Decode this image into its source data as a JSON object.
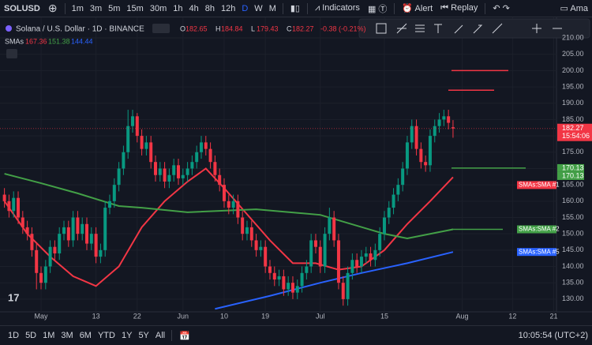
{
  "toolbar": {
    "symbol": "SOLUSD",
    "intervals": [
      "1m",
      "3m",
      "5m",
      "15m",
      "30m",
      "1h",
      "4h",
      "8h",
      "12h",
      "D",
      "W",
      "M"
    ],
    "active": "D",
    "indicators": "Indicators",
    "alert": "Alert",
    "replay": "Replay",
    "account": "Ama"
  },
  "chart_data": {
    "type": "candlestick",
    "title": "Solana / U.S. Dollar · 1D · BINANCE",
    "ohlc_header": [
      {
        "label": "O",
        "value": 182.65
      },
      {
        "label": "H",
        "value": 184.84
      },
      {
        "label": "L",
        "value": 179.43
      },
      {
        "label": "C",
        "value": 182.27
      }
    ],
    "change": "-0.38 (-0.21%)",
    "up_color": "#089981",
    "down_color": "#f23645",
    "x": [
      -8,
      -7,
      -6,
      -5,
      -4,
      -3,
      -2,
      -1,
      0,
      1,
      2,
      3,
      4,
      5,
      6,
      7,
      8,
      9,
      10,
      11,
      12,
      13,
      14,
      15,
      16,
      17,
      18,
      19,
      20,
      21,
      22,
      23,
      24,
      25,
      26,
      27,
      28,
      29,
      30,
      31,
      32,
      33,
      34,
      35,
      36,
      37,
      38,
      39,
      40,
      41,
      42,
      43,
      44,
      45,
      46,
      47,
      48,
      49,
      50,
      51,
      52,
      53,
      54,
      55,
      56,
      57,
      58,
      59,
      60,
      61,
      62,
      63,
      64,
      65,
      66,
      67,
      68,
      69,
      70,
      71,
      72,
      73,
      74,
      75,
      76,
      77,
      78,
      79,
      80,
      81,
      82,
      83,
      84,
      85,
      86,
      87,
      88,
      89,
      90
    ],
    "open": [
      162,
      160,
      157,
      161,
      155,
      152,
      150,
      145,
      138,
      135,
      140,
      146,
      144,
      150,
      152,
      148,
      155,
      150,
      153,
      147,
      150,
      143,
      145,
      158,
      160,
      165,
      170,
      175,
      183,
      186,
      180,
      176,
      178,
      172,
      168,
      170,
      166,
      168,
      171,
      167,
      168,
      170,
      172,
      175,
      178,
      176,
      172,
      168,
      165,
      160,
      158,
      160,
      155,
      150,
      152,
      148,
      145,
      146,
      140,
      138,
      136,
      137,
      133,
      135,
      132,
      134,
      138,
      140,
      148,
      146,
      140,
      150,
      155,
      148,
      135,
      130,
      138,
      142,
      140,
      143,
      144,
      142,
      145,
      150,
      155,
      158,
      162,
      165,
      170,
      178,
      183,
      176,
      172,
      171,
      180,
      183,
      185,
      186,
      182.65
    ],
    "high": [
      164,
      162,
      163,
      163,
      157,
      154,
      152,
      147,
      140,
      142,
      148,
      148,
      152,
      154,
      154,
      157,
      157,
      155,
      155,
      152,
      152,
      147,
      160,
      162,
      167,
      172,
      177,
      188,
      188,
      187,
      182,
      180,
      180,
      174,
      172,
      172,
      170,
      173,
      173,
      170,
      172,
      174,
      177,
      180,
      180,
      178,
      174,
      170,
      167,
      162,
      162,
      162,
      157,
      154,
      154,
      150,
      148,
      148,
      142,
      140,
      139,
      139,
      137,
      137,
      136,
      140,
      142,
      150,
      150,
      148,
      152,
      158,
      157,
      150,
      137,
      140,
      144,
      144,
      145,
      146,
      146,
      147,
      152,
      157,
      160,
      164,
      167,
      172,
      180,
      185,
      185,
      178,
      174,
      182,
      185,
      187,
      188,
      188,
      184.84
    ],
    "low": [
      158,
      155,
      155,
      153,
      150,
      148,
      143,
      133,
      133,
      133,
      138,
      142,
      142,
      148,
      146,
      146,
      148,
      148,
      145,
      145,
      141,
      141,
      143,
      156,
      158,
      163,
      168,
      173,
      181,
      178,
      174,
      174,
      170,
      166,
      166,
      164,
      164,
      166,
      165,
      165,
      166,
      168,
      170,
      173,
      174,
      170,
      166,
      163,
      158,
      156,
      156,
      153,
      148,
      148,
      146,
      143,
      143,
      138,
      136,
      134,
      134,
      131,
      131,
      130,
      130,
      132,
      136,
      138,
      144,
      138,
      138,
      148,
      146,
      133,
      128,
      128,
      136,
      138,
      138,
      141,
      140,
      140,
      143,
      148,
      153,
      156,
      160,
      163,
      168,
      176,
      174,
      170,
      169,
      169,
      178,
      181,
      183,
      182,
      179.43
    ],
    "close": [
      160,
      157,
      161,
      155,
      152,
      150,
      145,
      138,
      135,
      140,
      146,
      144,
      150,
      152,
      148,
      155,
      150,
      153,
      147,
      150,
      143,
      145,
      158,
      160,
      165,
      170,
      175,
      183,
      186,
      180,
      176,
      178,
      172,
      168,
      170,
      166,
      168,
      171,
      167,
      168,
      170,
      172,
      175,
      178,
      176,
      172,
      168,
      165,
      160,
      158,
      160,
      155,
      150,
      152,
      148,
      145,
      146,
      140,
      138,
      136,
      137,
      133,
      135,
      132,
      134,
      138,
      140,
      148,
      146,
      140,
      150,
      155,
      148,
      135,
      130,
      138,
      142,
      140,
      143,
      144,
      142,
      145,
      150,
      155,
      158,
      162,
      165,
      170,
      178,
      183,
      176,
      172,
      171,
      180,
      183,
      185,
      186,
      184,
      182.27
    ],
    "indicator_name": "SMAs",
    "series": [
      {
        "name": "SMAs:SMA #1",
        "color": "#f23645",
        "x": [
          -8,
          -3,
          2,
          7,
          12,
          17,
          22,
          27,
          32,
          36,
          40,
          45,
          50,
          55,
          60,
          65,
          70,
          75,
          80,
          85,
          90
        ],
        "values": [
          160,
          150,
          143,
          137,
          134,
          140,
          152,
          160,
          166,
          170,
          164,
          156,
          148,
          141,
          141,
          139,
          140,
          145,
          153,
          160,
          167.36
        ]
      },
      {
        "name": "SMAs:SMA #2",
        "color": "#43a047",
        "x": [
          -8,
          0,
          8,
          17,
          22,
          32,
          47,
          61,
          75,
          80,
          90
        ],
        "values": [
          168.4,
          165.5,
          162.4,
          158.5,
          158,
          156.6,
          157.5,
          155.8,
          150,
          148.6,
          151.38
        ]
      },
      {
        "name": "SMAs:SMA #5",
        "color": "#2962ff",
        "x": [
          38,
          50,
          61,
          70,
          80,
          90
        ],
        "values": [
          127,
          131,
          135,
          138,
          141,
          144.44
        ]
      }
    ],
    "last_time": "15:54:06",
    "extra_tags": [
      170.13,
      170.13
    ],
    "tag_color": "#43a047",
    "drawings": [
      {
        "y": 200,
        "color": "#f23645"
      },
      {
        "y": 194,
        "color": "#f23645"
      },
      {
        "y": 170.13,
        "color": "#43a047"
      },
      {
        "y": 151.38,
        "color": "#43a047"
      }
    ],
    "ylim": [
      126.1,
      216.3
    ],
    "yticks": [
      {
        "value": 130,
        "label": "130.00"
      },
      {
        "value": 135,
        "label": "135.00"
      },
      {
        "value": 140,
        "label": "140.00"
      },
      {
        "value": 145,
        "label": "145.00"
      },
      {
        "value": 150,
        "label": "150.00"
      },
      {
        "value": 155,
        "label": "155.00"
      },
      {
        "value": 160,
        "label": "160.00"
      },
      {
        "value": 165,
        "label": "165.00"
      },
      {
        "value": 170,
        "label": "170.00"
      },
      {
        "value": 175,
        "label": "175.00"
      },
      {
        "value": 180,
        "label": "180.00"
      },
      {
        "value": 185,
        "label": "185.00"
      },
      {
        "value": 190,
        "label": "190.00"
      },
      {
        "value": 195,
        "label": "195.00"
      },
      {
        "value": 200,
        "label": "200.00"
      },
      {
        "value": 205,
        "label": "205.00"
      },
      {
        "value": 210,
        "label": "210.00"
      }
    ],
    "xlim": [
      -8.97,
      112.6
    ],
    "xticks": [
      {
        "value": 0,
        "label": "May"
      },
      {
        "value": 12,
        "label": "13"
      },
      {
        "value": 21,
        "label": "22"
      },
      {
        "value": 31,
        "label": "Jun"
      },
      {
        "value": 40,
        "label": "10"
      },
      {
        "value": 49,
        "label": "19"
      },
      {
        "value": 61,
        "label": "Jul"
      },
      {
        "value": 75,
        "label": "15"
      },
      {
        "value": 92,
        "label": "Aug"
      },
      {
        "value": 103,
        "label": "12"
      },
      {
        "value": 112,
        "label": "21"
      }
    ],
    "grid": true
  },
  "footer": {
    "ranges": [
      "1D",
      "5D",
      "1M",
      "3M",
      "6M",
      "YTD",
      "1Y",
      "5Y",
      "All"
    ],
    "clock": "10:05:54 (UTC+2)"
  }
}
